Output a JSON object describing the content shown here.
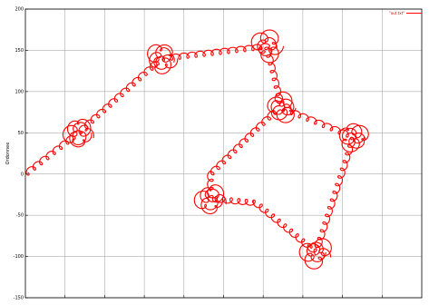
{
  "chart_data": {
    "type": "line",
    "title": "",
    "xlabel": "",
    "ylabel": "Ordonnee",
    "xlim": [
      -50,
      1000
    ],
    "ylim": [
      -150,
      200
    ],
    "yticks": [
      -150,
      -100,
      -50,
      0,
      50,
      100,
      150,
      200
    ],
    "xtick_count": 10,
    "grid": true,
    "legend_position": "top-right",
    "series": [
      {
        "name": "\"out.txt\"",
        "color": "#ff0000",
        "path_nodes": [
          [
            -50,
            0
          ],
          [
            90,
            50
          ],
          [
            310,
            140
          ],
          [
            590,
            155
          ],
          [
            630,
            80
          ],
          [
            820,
            45
          ],
          [
            720,
            -95
          ],
          [
            560,
            -35
          ],
          [
            440,
            -30
          ],
          [
            440,
            0
          ],
          [
            620,
            80
          ]
        ],
        "coil_centers": [
          [
            90,
            50
          ],
          [
            310,
            140
          ],
          [
            590,
            155
          ],
          [
            630,
            80
          ],
          [
            820,
            45
          ],
          [
            720,
            -95
          ],
          [
            440,
            -30
          ]
        ]
      }
    ]
  }
}
